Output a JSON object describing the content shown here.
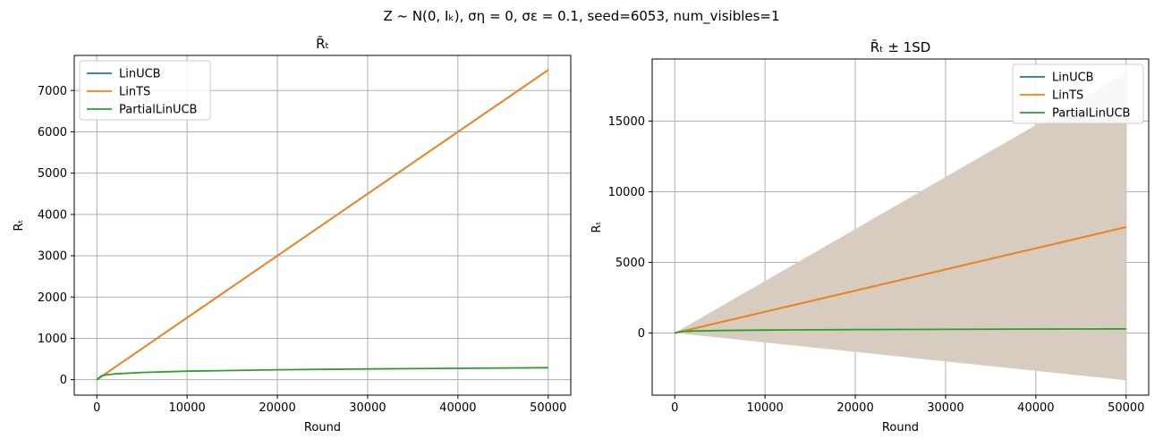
{
  "figure": {
    "suptitle": "Z ~ N(0, Iₖ), ση = 0, σε = 0.1, seed=6053, num_visibles=1"
  },
  "chart_data": [
    {
      "type": "line",
      "title": "R̄ₜ",
      "xlabel": "Round",
      "ylabel": "Rₜ",
      "xlim": [
        -2500,
        52500
      ],
      "ylim": [
        -375,
        7850
      ],
      "xticks": [
        0,
        10000,
        20000,
        30000,
        40000,
        50000
      ],
      "yticks": [
        0,
        1000,
        2000,
        3000,
        4000,
        5000,
        6000,
        7000
      ],
      "grid": true,
      "legend": "upper-left",
      "series": [
        {
          "name": "LinUCB",
          "color": "#1f77b4",
          "x": [
            0,
            10000,
            20000,
            30000,
            40000,
            50000
          ],
          "y": [
            0,
            1500,
            3000,
            4500,
            6000,
            7500
          ]
        },
        {
          "name": "LinTS",
          "color": "#ff7f0e",
          "x": [
            0,
            10000,
            20000,
            30000,
            40000,
            50000
          ],
          "y": [
            0,
            1500,
            3000,
            4500,
            6000,
            7500
          ]
        },
        {
          "name": "PartialLinUCB",
          "color": "#2ca02c",
          "x": [
            0,
            500,
            1000,
            2000,
            5000,
            10000,
            20000,
            30000,
            40000,
            50000
          ],
          "y": [
            0,
            90,
            115,
            140,
            175,
            205,
            240,
            260,
            275,
            290
          ]
        }
      ]
    },
    {
      "type": "line",
      "title": "R̄ₜ ± 1SD",
      "xlabel": "Round",
      "ylabel": "Rₜ",
      "xlim": [
        -2500,
        52500
      ],
      "ylim": [
        -4400,
        19400
      ],
      "xticks": [
        0,
        10000,
        20000,
        30000,
        40000,
        50000
      ],
      "yticks": [
        0,
        5000,
        10000,
        15000
      ],
      "grid": true,
      "legend": "upper-right",
      "band": {
        "color": "#d8ccc0",
        "x": [
          0,
          50000
        ],
        "upper": [
          0,
          18400
        ],
        "lower": [
          0,
          -3350
        ]
      },
      "series": [
        {
          "name": "LinUCB",
          "color": "#1f77b4",
          "x": [
            0,
            10000,
            20000,
            30000,
            40000,
            50000
          ],
          "y": [
            0,
            1500,
            3000,
            4500,
            6000,
            7500
          ]
        },
        {
          "name": "LinTS",
          "color": "#ff7f0e",
          "x": [
            0,
            10000,
            20000,
            30000,
            40000,
            50000
          ],
          "y": [
            0,
            1500,
            3000,
            4500,
            6000,
            7500
          ]
        },
        {
          "name": "PartialLinUCB",
          "color": "#2ca02c",
          "x": [
            0,
            500,
            1000,
            2000,
            5000,
            10000,
            20000,
            30000,
            40000,
            50000
          ],
          "y": [
            0,
            90,
            115,
            140,
            175,
            205,
            240,
            260,
            275,
            290
          ]
        }
      ]
    }
  ]
}
